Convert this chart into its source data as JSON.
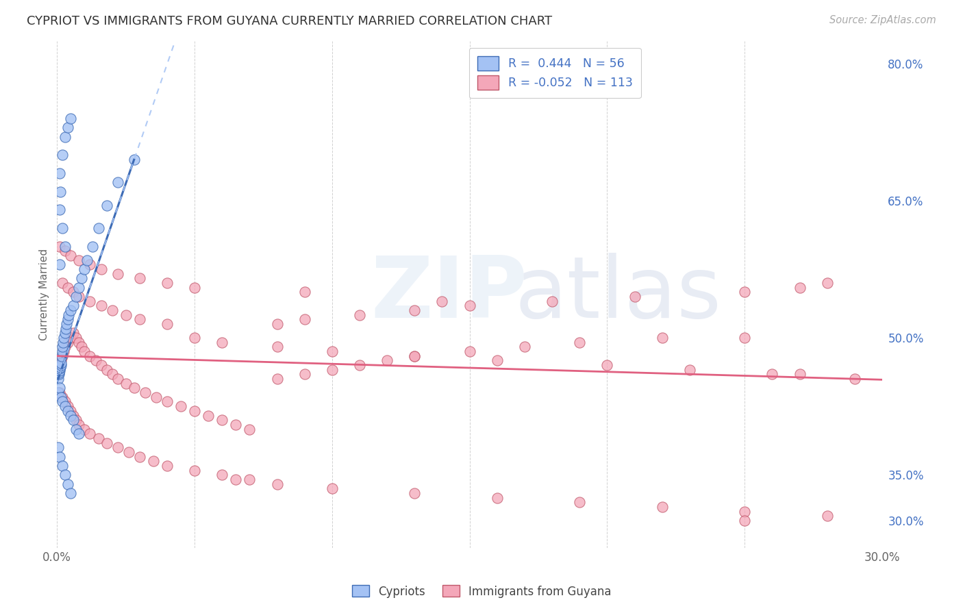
{
  "title": "CYPRIOT VS IMMIGRANTS FROM GUYANA CURRENTLY MARRIED CORRELATION CHART",
  "source": "Source: ZipAtlas.com",
  "ylabel": "Currently Married",
  "xlim": [
    0.0,
    0.3
  ],
  "ylim": [
    0.27,
    0.825
  ],
  "ytick_vals": [
    0.3,
    0.35,
    0.5,
    0.65,
    0.8
  ],
  "ytick_labels": [
    "30.0%",
    "35.0%",
    "50.0%",
    "65.0%",
    "80.0%"
  ],
  "xtick_vals": [
    0.0,
    0.05,
    0.1,
    0.15,
    0.2,
    0.25,
    0.3
  ],
  "xtick_labels": [
    "0.0%",
    "",
    "",
    "",
    "",
    "",
    "30.0%"
  ],
  "blue_face": "#a4c2f4",
  "blue_edge": "#3d6bb5",
  "pink_face": "#f4a7b9",
  "pink_edge": "#c0576a",
  "trend_blue_color": "#3d6bb5",
  "trend_pink_color": "#e06080",
  "grid_color": "#cccccc",
  "label_color": "#4472c4",
  "axis_label_color": "#666666",
  "background": "#ffffff",
  "figsize": [
    14.06,
    8.92
  ],
  "dpi": 100,
  "blue_x": [
    0.0004,
    0.0006,
    0.0007,
    0.0008,
    0.001,
    0.0012,
    0.0013,
    0.0015,
    0.0016,
    0.0018,
    0.002,
    0.0022,
    0.0025,
    0.003,
    0.0032,
    0.0035,
    0.004,
    0.0042,
    0.005,
    0.006,
    0.007,
    0.008,
    0.009,
    0.01,
    0.011,
    0.013,
    0.015,
    0.018,
    0.022,
    0.028,
    0.0005,
    0.001,
    0.0015,
    0.002,
    0.003,
    0.004,
    0.005,
    0.006,
    0.007,
    0.008,
    0.001,
    0.002,
    0.003,
    0.004,
    0.005,
    0.0008,
    0.0012,
    0.002,
    0.003,
    0.001,
    0.0005,
    0.001,
    0.002,
    0.003,
    0.004,
    0.005
  ],
  "blue_y": [
    0.455,
    0.46,
    0.462,
    0.464,
    0.466,
    0.468,
    0.47,
    0.472,
    0.48,
    0.485,
    0.49,
    0.495,
    0.5,
    0.505,
    0.51,
    0.515,
    0.52,
    0.525,
    0.53,
    0.535,
    0.545,
    0.555,
    0.565,
    0.575,
    0.585,
    0.6,
    0.62,
    0.645,
    0.67,
    0.695,
    0.44,
    0.445,
    0.435,
    0.43,
    0.425,
    0.42,
    0.415,
    0.41,
    0.4,
    0.395,
    0.68,
    0.7,
    0.72,
    0.73,
    0.74,
    0.64,
    0.66,
    0.62,
    0.6,
    0.58,
    0.38,
    0.37,
    0.36,
    0.35,
    0.34,
    0.33
  ],
  "pink_x": [
    0.0005,
    0.001,
    0.0015,
    0.002,
    0.0025,
    0.003,
    0.004,
    0.005,
    0.006,
    0.007,
    0.008,
    0.009,
    0.01,
    0.012,
    0.014,
    0.016,
    0.018,
    0.02,
    0.022,
    0.025,
    0.028,
    0.032,
    0.036,
    0.04,
    0.045,
    0.05,
    0.055,
    0.06,
    0.065,
    0.07,
    0.08,
    0.09,
    0.1,
    0.11,
    0.12,
    0.13,
    0.15,
    0.17,
    0.19,
    0.22,
    0.001,
    0.002,
    0.003,
    0.004,
    0.005,
    0.006,
    0.007,
    0.008,
    0.01,
    0.012,
    0.015,
    0.018,
    0.022,
    0.026,
    0.03,
    0.035,
    0.04,
    0.05,
    0.06,
    0.07,
    0.08,
    0.09,
    0.11,
    0.13,
    0.15,
    0.18,
    0.21,
    0.25,
    0.27,
    0.28,
    0.002,
    0.004,
    0.006,
    0.008,
    0.012,
    0.016,
    0.02,
    0.025,
    0.03,
    0.04,
    0.05,
    0.06,
    0.08,
    0.1,
    0.13,
    0.16,
    0.2,
    0.23,
    0.26,
    0.29,
    0.001,
    0.003,
    0.005,
    0.008,
    0.012,
    0.016,
    0.022,
    0.03,
    0.04,
    0.05,
    0.065,
    0.08,
    0.1,
    0.13,
    0.16,
    0.19,
    0.22,
    0.25,
    0.28,
    0.25,
    0.09,
    0.14,
    0.25,
    0.27
  ],
  "pink_y": [
    0.465,
    0.47,
    0.475,
    0.48,
    0.485,
    0.49,
    0.495,
    0.5,
    0.505,
    0.5,
    0.495,
    0.49,
    0.485,
    0.48,
    0.475,
    0.47,
    0.465,
    0.46,
    0.455,
    0.45,
    0.445,
    0.44,
    0.435,
    0.43,
    0.425,
    0.42,
    0.415,
    0.41,
    0.405,
    0.4,
    0.455,
    0.46,
    0.465,
    0.47,
    0.475,
    0.48,
    0.485,
    0.49,
    0.495,
    0.5,
    0.44,
    0.435,
    0.43,
    0.425,
    0.42,
    0.415,
    0.41,
    0.405,
    0.4,
    0.395,
    0.39,
    0.385,
    0.38,
    0.375,
    0.37,
    0.365,
    0.36,
    0.355,
    0.35,
    0.345,
    0.515,
    0.52,
    0.525,
    0.53,
    0.535,
    0.54,
    0.545,
    0.55,
    0.555,
    0.56,
    0.56,
    0.555,
    0.55,
    0.545,
    0.54,
    0.535,
    0.53,
    0.525,
    0.52,
    0.515,
    0.5,
    0.495,
    0.49,
    0.485,
    0.48,
    0.475,
    0.47,
    0.465,
    0.46,
    0.455,
    0.6,
    0.595,
    0.59,
    0.585,
    0.58,
    0.575,
    0.57,
    0.565,
    0.56,
    0.555,
    0.345,
    0.34,
    0.335,
    0.33,
    0.325,
    0.32,
    0.315,
    0.31,
    0.305,
    0.3,
    0.55,
    0.54,
    0.5,
    0.46
  ]
}
